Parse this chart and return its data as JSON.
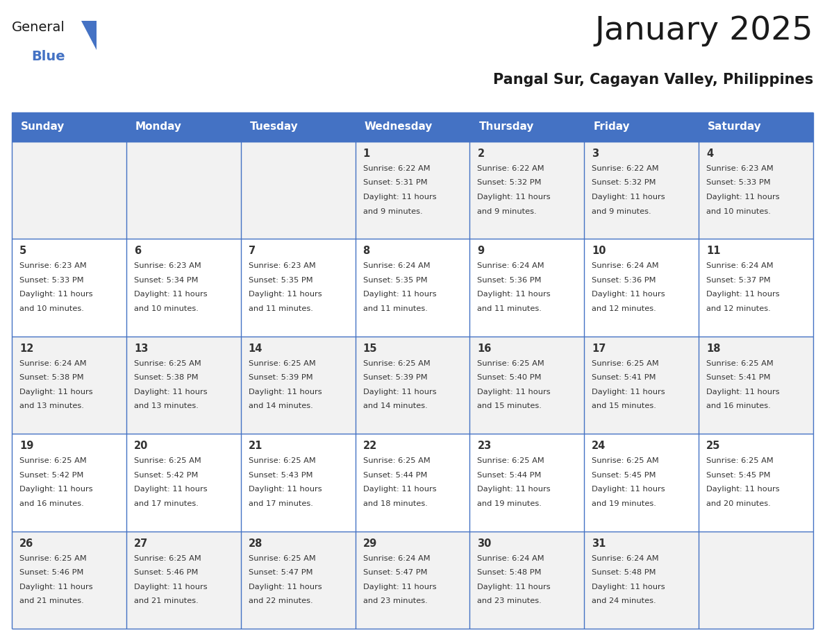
{
  "title": "January 2025",
  "subtitle": "Pangal Sur, Cagayan Valley, Philippines",
  "days_of_week": [
    "Sunday",
    "Monday",
    "Tuesday",
    "Wednesday",
    "Thursday",
    "Friday",
    "Saturday"
  ],
  "header_bg_color": "#4472C4",
  "header_text_color": "#FFFFFF",
  "cell_bg_color_odd": "#F2F2F2",
  "cell_bg_color_even": "#FFFFFF",
  "cell_border_color": "#4472C4",
  "text_color": "#333333",
  "title_color": "#1a1a1a",
  "calendar_data": [
    [
      null,
      null,
      null,
      {
        "day": 1,
        "sunrise": "6:22 AM",
        "sunset": "5:31 PM",
        "daylight": "11 hours and 9 minutes."
      },
      {
        "day": 2,
        "sunrise": "6:22 AM",
        "sunset": "5:32 PM",
        "daylight": "11 hours and 9 minutes."
      },
      {
        "day": 3,
        "sunrise": "6:22 AM",
        "sunset": "5:32 PM",
        "daylight": "11 hours and 9 minutes."
      },
      {
        "day": 4,
        "sunrise": "6:23 AM",
        "sunset": "5:33 PM",
        "daylight": "11 hours and 10 minutes."
      }
    ],
    [
      {
        "day": 5,
        "sunrise": "6:23 AM",
        "sunset": "5:33 PM",
        "daylight": "11 hours and 10 minutes."
      },
      {
        "day": 6,
        "sunrise": "6:23 AM",
        "sunset": "5:34 PM",
        "daylight": "11 hours and 10 minutes."
      },
      {
        "day": 7,
        "sunrise": "6:23 AM",
        "sunset": "5:35 PM",
        "daylight": "11 hours and 11 minutes."
      },
      {
        "day": 8,
        "sunrise": "6:24 AM",
        "sunset": "5:35 PM",
        "daylight": "11 hours and 11 minutes."
      },
      {
        "day": 9,
        "sunrise": "6:24 AM",
        "sunset": "5:36 PM",
        "daylight": "11 hours and 11 minutes."
      },
      {
        "day": 10,
        "sunrise": "6:24 AM",
        "sunset": "5:36 PM",
        "daylight": "11 hours and 12 minutes."
      },
      {
        "day": 11,
        "sunrise": "6:24 AM",
        "sunset": "5:37 PM",
        "daylight": "11 hours and 12 minutes."
      }
    ],
    [
      {
        "day": 12,
        "sunrise": "6:24 AM",
        "sunset": "5:38 PM",
        "daylight": "11 hours and 13 minutes."
      },
      {
        "day": 13,
        "sunrise": "6:25 AM",
        "sunset": "5:38 PM",
        "daylight": "11 hours and 13 minutes."
      },
      {
        "day": 14,
        "sunrise": "6:25 AM",
        "sunset": "5:39 PM",
        "daylight": "11 hours and 14 minutes."
      },
      {
        "day": 15,
        "sunrise": "6:25 AM",
        "sunset": "5:39 PM",
        "daylight": "11 hours and 14 minutes."
      },
      {
        "day": 16,
        "sunrise": "6:25 AM",
        "sunset": "5:40 PM",
        "daylight": "11 hours and 15 minutes."
      },
      {
        "day": 17,
        "sunrise": "6:25 AM",
        "sunset": "5:41 PM",
        "daylight": "11 hours and 15 minutes."
      },
      {
        "day": 18,
        "sunrise": "6:25 AM",
        "sunset": "5:41 PM",
        "daylight": "11 hours and 16 minutes."
      }
    ],
    [
      {
        "day": 19,
        "sunrise": "6:25 AM",
        "sunset": "5:42 PM",
        "daylight": "11 hours and 16 minutes."
      },
      {
        "day": 20,
        "sunrise": "6:25 AM",
        "sunset": "5:42 PM",
        "daylight": "11 hours and 17 minutes."
      },
      {
        "day": 21,
        "sunrise": "6:25 AM",
        "sunset": "5:43 PM",
        "daylight": "11 hours and 17 minutes."
      },
      {
        "day": 22,
        "sunrise": "6:25 AM",
        "sunset": "5:44 PM",
        "daylight": "11 hours and 18 minutes."
      },
      {
        "day": 23,
        "sunrise": "6:25 AM",
        "sunset": "5:44 PM",
        "daylight": "11 hours and 19 minutes."
      },
      {
        "day": 24,
        "sunrise": "6:25 AM",
        "sunset": "5:45 PM",
        "daylight": "11 hours and 19 minutes."
      },
      {
        "day": 25,
        "sunrise": "6:25 AM",
        "sunset": "5:45 PM",
        "daylight": "11 hours and 20 minutes."
      }
    ],
    [
      {
        "day": 26,
        "sunrise": "6:25 AM",
        "sunset": "5:46 PM",
        "daylight": "11 hours and 21 minutes."
      },
      {
        "day": 27,
        "sunrise": "6:25 AM",
        "sunset": "5:46 PM",
        "daylight": "11 hours and 21 minutes."
      },
      {
        "day": 28,
        "sunrise": "6:25 AM",
        "sunset": "5:47 PM",
        "daylight": "11 hours and 22 minutes."
      },
      {
        "day": 29,
        "sunrise": "6:24 AM",
        "sunset": "5:47 PM",
        "daylight": "11 hours and 23 minutes."
      },
      {
        "day": 30,
        "sunrise": "6:24 AM",
        "sunset": "5:48 PM",
        "daylight": "11 hours and 23 minutes."
      },
      {
        "day": 31,
        "sunrise": "6:24 AM",
        "sunset": "5:48 PM",
        "daylight": "11 hours and 24 minutes."
      },
      null
    ]
  ],
  "logo_text_general": "General",
  "logo_text_blue": "Blue",
  "logo_color_general": "#1a1a1a",
  "logo_color_blue": "#4472C4",
  "logo_triangle_color": "#4472C4",
  "fig_width": 11.88,
  "fig_height": 9.18,
  "dpi": 100
}
